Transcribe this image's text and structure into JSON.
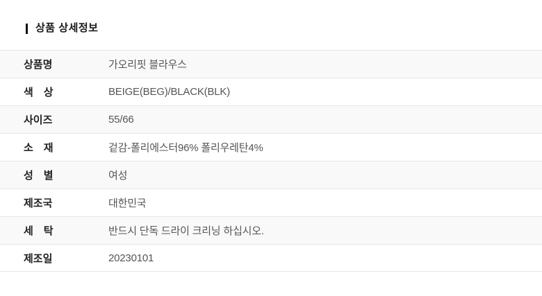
{
  "theme": {
    "row_alt_bg": "#f9f9f9",
    "border_color": "#e6e6e6",
    "title_color": "#1a1a1a",
    "label_color": "#222222",
    "value_color": "#555555"
  },
  "header": {
    "title": "상품 상세정보"
  },
  "table": {
    "rows": [
      {
        "label": "상품명",
        "value": "가오리핏 블라우스"
      },
      {
        "label": "색　상",
        "value": "BEIGE(BEG)/BLACK(BLK)"
      },
      {
        "label": "사이즈",
        "value": "55/66"
      },
      {
        "label": "소　재",
        "value": "겉감-폴리에스터96% 폴리우레탄4%"
      },
      {
        "label": "성　별",
        "value": "여성"
      },
      {
        "label": "제조국",
        "value": "대한민국"
      },
      {
        "label": "세　탁",
        "value": "반드시 단독 드라이 크리닝 하십시오."
      },
      {
        "label": "제조일",
        "value": "20230101"
      }
    ]
  }
}
